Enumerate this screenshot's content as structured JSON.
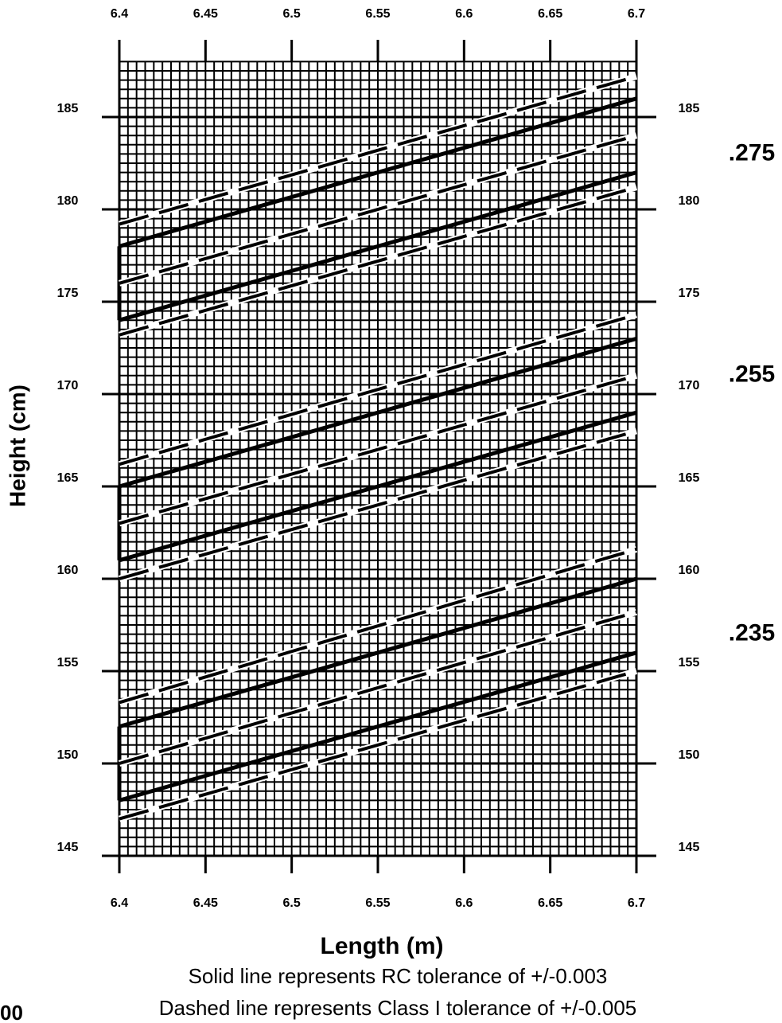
{
  "chart_data": {
    "type": "line",
    "xlabel": "Length (m)",
    "ylabel": "Height (cm)",
    "notes": [
      "Solid line represents RC tolerance of +/-0.003",
      "Dashed line represents Class I tolerance of +/-0.005"
    ],
    "corner_text": "00",
    "annotations": [
      {
        "text": ".275",
        "y": 183
      },
      {
        "text": ".255",
        "y": 171
      },
      {
        "text": ".235",
        "y": 157
      }
    ],
    "x": [
      6.4,
      6.7
    ],
    "xlim": [
      6.4,
      6.7
    ],
    "xticks": [
      6.4,
      6.45,
      6.5,
      6.55,
      6.6,
      6.65,
      6.7
    ],
    "ylim": [
      145,
      188
    ],
    "yticks": [
      145,
      150,
      155,
      160,
      165,
      170,
      175,
      180,
      185
    ],
    "grid": true,
    "series": [
      {
        "style": "solid",
        "color": "#000000",
        "values": [
          178,
          186
        ]
      },
      {
        "style": "solid",
        "color": "#000000",
        "values": [
          174,
          182
        ]
      },
      {
        "style": "dashed",
        "color": "#000000",
        "values": [
          179.2,
          187.2
        ]
      },
      {
        "style": "dashed",
        "color": "#000000",
        "values": [
          176,
          184
        ]
      },
      {
        "style": "dashed",
        "color": "#000000",
        "values": [
          173.2,
          181.2
        ]
      },
      {
        "style": "solid",
        "color": "#000000",
        "values": [
          165,
          173
        ]
      },
      {
        "style": "solid",
        "color": "#000000",
        "values": [
          161,
          169
        ]
      },
      {
        "style": "dashed",
        "color": "#000000",
        "values": [
          166.2,
          174.3
        ]
      },
      {
        "style": "dashed",
        "color": "#000000",
        "values": [
          163,
          171
        ]
      },
      {
        "style": "dashed",
        "color": "#000000",
        "values": [
          160,
          168
        ]
      },
      {
        "style": "solid",
        "color": "#000000",
        "values": [
          152,
          160
        ]
      },
      {
        "style": "solid",
        "color": "#000000",
        "values": [
          148,
          156
        ]
      },
      {
        "style": "dashed",
        "color": "#000000",
        "values": [
          153.3,
          161.6
        ]
      },
      {
        "style": "dashed",
        "color": "#000000",
        "values": [
          150,
          158.2
        ]
      },
      {
        "style": "dashed",
        "color": "#000000",
        "values": [
          147,
          155
        ]
      }
    ]
  }
}
